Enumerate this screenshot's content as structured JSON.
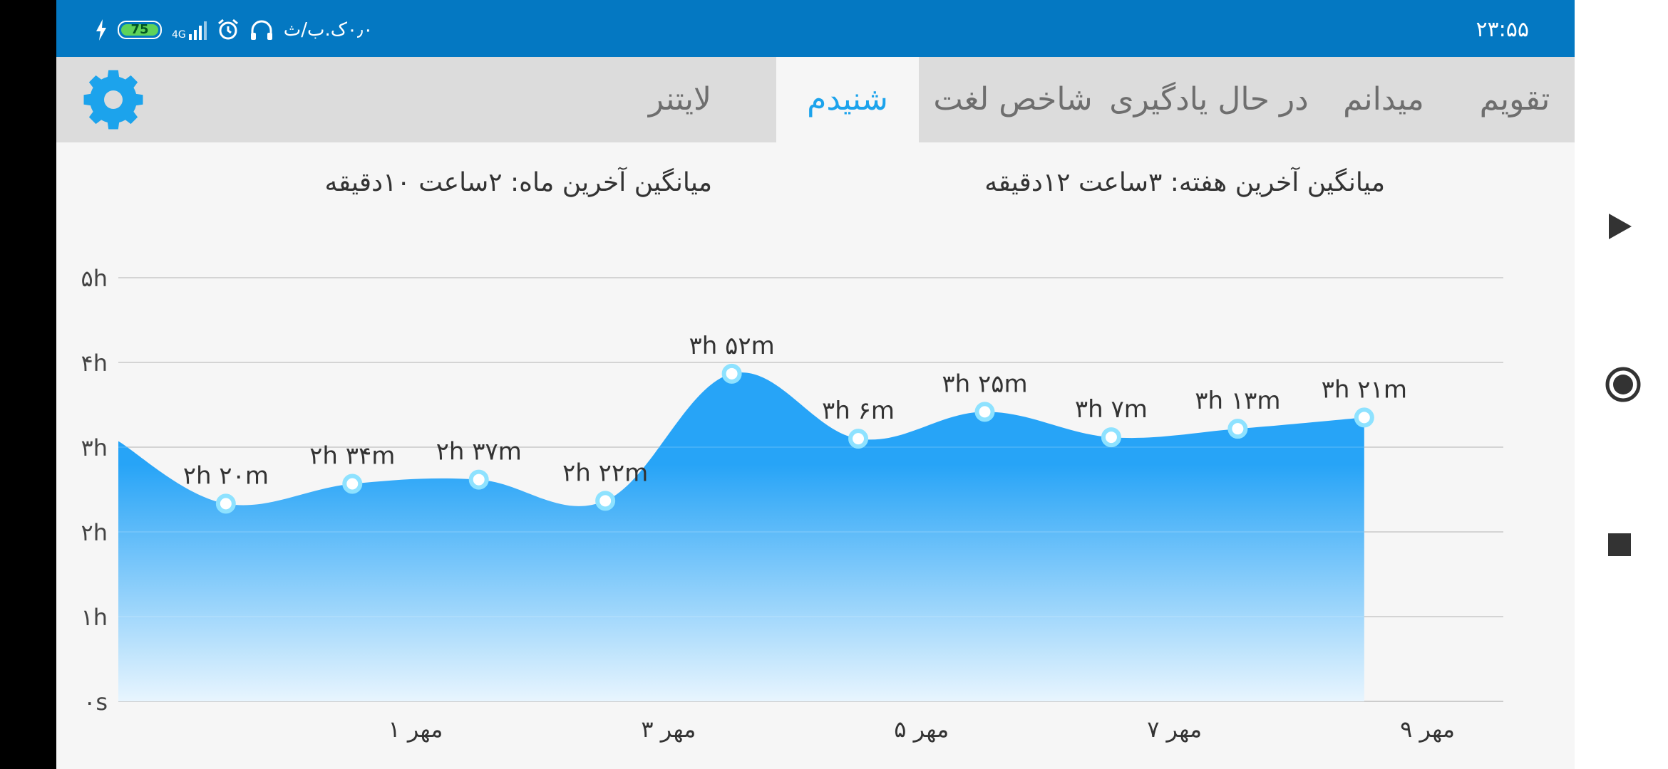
{
  "status_bar": {
    "time": "۲۳:۵۵",
    "data_speed": "۰٫۰ک.ب/ث",
    "network": "4G",
    "battery": "75"
  },
  "tabs": [
    {
      "label": "تقویم",
      "active": false
    },
    {
      "label": "میدانم",
      "active": false
    },
    {
      "label": "در حال یادگیری",
      "active": false
    },
    {
      "label": "شاخص لغت",
      "active": false
    },
    {
      "label": "شنیدم",
      "active": true
    },
    {
      "label": "لایتنر",
      "active": false
    }
  ],
  "stats": {
    "week_avg": "میانگین آخرین هفته: ۳ساعت  ۱۲دقیقه",
    "month_avg": "میانگین آخرین ماه: ۲ساعت  ۱۰دقیقه"
  },
  "colors": {
    "accent": "#1ca3ec",
    "status_bar": "#0478c2",
    "area_top": "#27a4f7",
    "point_stroke": "#8ee2ff"
  },
  "chart_data": {
    "type": "area",
    "y_unit": "hours",
    "ylim": [
      0,
      5
    ],
    "y_ticks": [
      {
        "value": 0,
        "label": "۰s"
      },
      {
        "value": 1,
        "label": "۱h"
      },
      {
        "value": 2,
        "label": "۲h"
      },
      {
        "value": 3,
        "label": "۳h"
      },
      {
        "value": 4,
        "label": "۴h"
      },
      {
        "value": 5,
        "label": "۵h"
      }
    ],
    "x_tick_labels": [
      "۱ مهر",
      "۳ مهر",
      "۵ مهر",
      "۷ مهر",
      "۹ مهر"
    ],
    "x_tick_days": [
      1,
      3,
      5,
      7,
      9
    ],
    "xlim": [
      -1.35,
      9.6
    ],
    "leading_value": 3.07,
    "points": [
      {
        "day": -0.5,
        "value": 2.333,
        "label": "۲h ۲۰m"
      },
      {
        "day": 0.5,
        "value": 2.567,
        "label": "۲h ۳۴m"
      },
      {
        "day": 1.5,
        "value": 2.617,
        "label": "۲h ۳۷m"
      },
      {
        "day": 2.5,
        "value": 2.367,
        "label": "۲h ۲۲m"
      },
      {
        "day": 3.5,
        "value": 3.867,
        "label": "۳h ۵۲m"
      },
      {
        "day": 4.5,
        "value": 3.1,
        "label": "۳h ۶m"
      },
      {
        "day": 5.5,
        "value": 3.417,
        "label": "۳h ۲۵m"
      },
      {
        "day": 6.5,
        "value": 3.117,
        "label": "۳h ۷m"
      },
      {
        "day": 7.5,
        "value": 3.217,
        "label": "۳h ۱۳m"
      },
      {
        "day": 8.5,
        "value": 3.35,
        "label": "۳h ۲۱m"
      }
    ]
  },
  "nav": {
    "back": "back-icon",
    "home": "home-icon",
    "recents": "recents-icon"
  }
}
